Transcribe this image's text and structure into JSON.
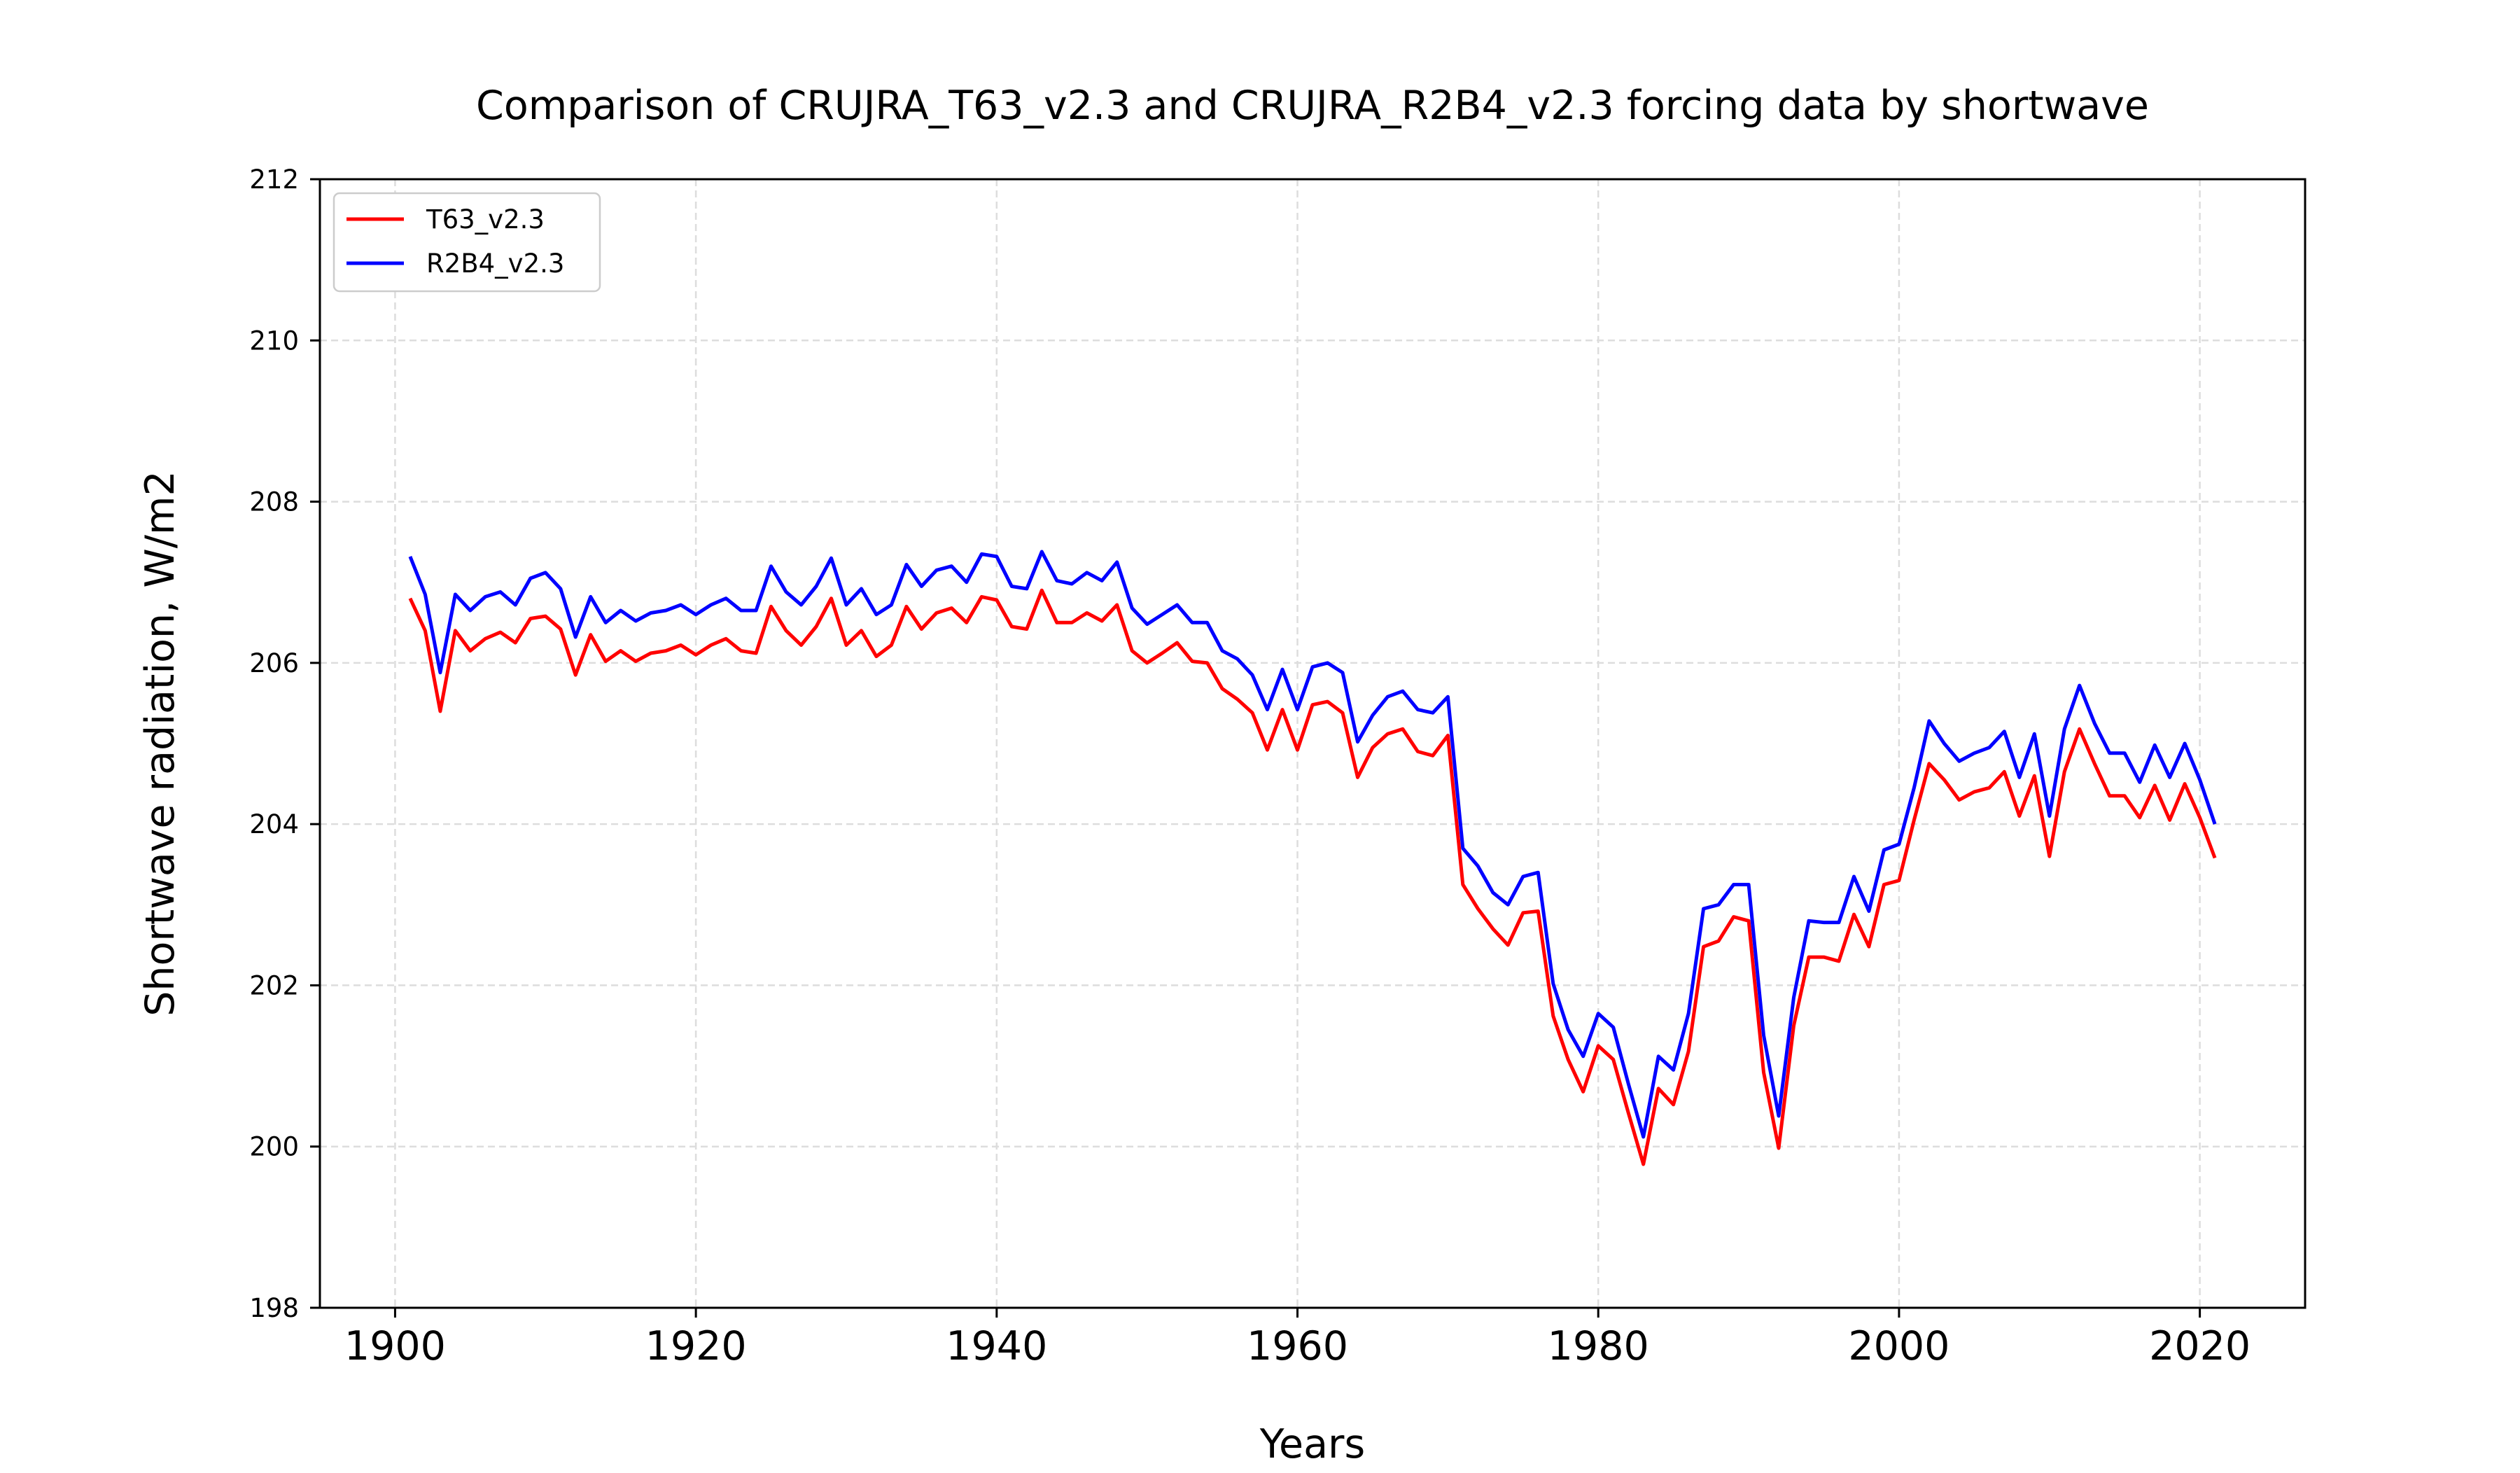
{
  "chart_data": {
    "type": "line",
    "title": "Comparison of CRUJRA_T63_v2.3 and CRUJRA_R2B4_v2.3 forcing data by shortwave",
    "xlabel": "Years",
    "ylabel": "Shortwave radiation, W/m2",
    "xlim": [
      1895,
      2027
    ],
    "ylim": [
      198,
      212
    ],
    "xticks": [
      1900,
      1920,
      1940,
      1960,
      1980,
      2000,
      2020
    ],
    "yticks": [
      198,
      200,
      202,
      204,
      206,
      208,
      210,
      212
    ],
    "grid": true,
    "legend_position": "top-left",
    "x": [
      1901,
      1902,
      1903,
      1904,
      1905,
      1906,
      1907,
      1908,
      1909,
      1910,
      1911,
      1912,
      1913,
      1914,
      1915,
      1916,
      1917,
      1918,
      1919,
      1920,
      1921,
      1922,
      1923,
      1924,
      1925,
      1926,
      1927,
      1928,
      1929,
      1930,
      1931,
      1932,
      1933,
      1934,
      1935,
      1936,
      1937,
      1938,
      1939,
      1940,
      1941,
      1942,
      1943,
      1944,
      1945,
      1946,
      1947,
      1948,
      1949,
      1950,
      1951,
      1952,
      1953,
      1954,
      1955,
      1956,
      1957,
      1958,
      1959,
      1960,
      1961,
      1962,
      1963,
      1964,
      1965,
      1966,
      1967,
      1968,
      1969,
      1970,
      1971,
      1972,
      1973,
      1974,
      1975,
      1976,
      1977,
      1978,
      1979,
      1980,
      1981,
      1982,
      1983,
      1984,
      1985,
      1986,
      1987,
      1988,
      1989,
      1990,
      1991,
      1992,
      1993,
      1994,
      1995,
      1996,
      1997,
      1998,
      1999,
      2000,
      2001,
      2002,
      2003,
      2004,
      2005,
      2006,
      2007,
      2008,
      2009,
      2010,
      2011,
      2012,
      2013,
      2014,
      2015,
      2016,
      2017,
      2018,
      2019,
      2020,
      2021
    ],
    "series": [
      {
        "name": "T63_v2.3",
        "color": "#ff0000",
        "values": [
          206.8,
          206.4,
          205.4,
          206.4,
          206.15,
          206.3,
          206.38,
          206.25,
          206.55,
          206.58,
          206.42,
          205.85,
          206.35,
          206.02,
          206.15,
          206.02,
          206.12,
          206.15,
          206.22,
          206.1,
          206.22,
          206.3,
          206.15,
          206.12,
          206.7,
          206.4,
          206.22,
          206.45,
          206.8,
          206.22,
          206.4,
          206.08,
          206.22,
          206.7,
          206.42,
          206.62,
          206.68,
          206.5,
          206.82,
          206.78,
          206.45,
          206.42,
          206.9,
          206.5,
          206.5,
          206.62,
          206.52,
          206.72,
          206.15,
          206.0,
          206.12,
          206.25,
          206.02,
          206.0,
          205.68,
          205.55,
          205.38,
          204.92,
          205.42,
          204.92,
          205.48,
          205.52,
          205.38,
          204.58,
          204.95,
          205.12,
          205.18,
          204.9,
          204.85,
          205.1,
          203.25,
          202.95,
          202.7,
          202.5,
          202.9,
          202.92,
          201.62,
          201.08,
          200.68,
          201.25,
          201.08,
          200.42,
          199.78,
          200.72,
          200.52,
          201.18,
          202.48,
          202.55,
          202.85,
          202.8,
          200.92,
          199.98,
          201.5,
          202.35,
          202.35,
          202.3,
          202.88,
          202.48,
          203.25,
          203.3,
          204.05,
          204.75,
          204.55,
          204.3,
          204.4,
          204.45,
          204.65,
          204.1,
          204.6,
          203.6,
          204.65,
          205.18,
          204.75,
          204.35,
          204.35,
          204.08,
          204.48,
          204.05,
          204.5,
          204.08,
          203.58
        ]
      },
      {
        "name": "R2B4_v2.3",
        "color": "#0000ff",
        "values": [
          207.32,
          206.85,
          205.88,
          206.85,
          206.65,
          206.82,
          206.88,
          206.72,
          207.05,
          207.12,
          206.92,
          206.32,
          206.82,
          206.5,
          206.65,
          206.52,
          206.62,
          206.65,
          206.72,
          206.6,
          206.72,
          206.8,
          206.65,
          206.65,
          207.2,
          206.88,
          206.72,
          206.95,
          207.3,
          206.72,
          206.92,
          206.6,
          206.72,
          207.22,
          206.95,
          207.15,
          207.2,
          207.0,
          207.35,
          207.32,
          206.95,
          206.92,
          207.38,
          207.02,
          206.98,
          207.12,
          207.02,
          207.25,
          206.68,
          206.48,
          206.6,
          206.72,
          206.5,
          206.5,
          206.15,
          206.05,
          205.85,
          205.42,
          205.92,
          205.42,
          205.95,
          206.0,
          205.88,
          205.02,
          205.35,
          205.58,
          205.65,
          205.42,
          205.38,
          205.58,
          203.7,
          203.48,
          203.15,
          203.0,
          203.35,
          203.4,
          202.02,
          201.45,
          201.12,
          201.65,
          201.48,
          200.78,
          200.12,
          201.12,
          200.95,
          201.65,
          202.95,
          203.0,
          203.25,
          203.25,
          201.38,
          200.38,
          201.85,
          202.8,
          202.78,
          202.78,
          203.35,
          202.92,
          203.68,
          203.75,
          204.45,
          205.28,
          205.0,
          204.78,
          204.88,
          204.95,
          205.15,
          204.58,
          205.12,
          204.1,
          205.18,
          205.72,
          205.25,
          204.88,
          204.88,
          204.52,
          204.98,
          204.58,
          205.0,
          204.55,
          204.0
        ]
      }
    ]
  }
}
